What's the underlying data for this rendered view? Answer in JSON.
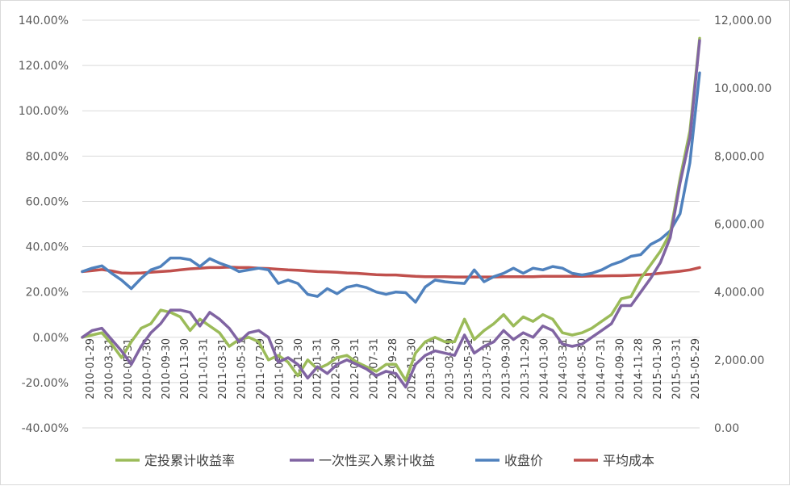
{
  "chart_data": {
    "type": "line",
    "title": "",
    "left_axis": {
      "min": -40,
      "max": 140,
      "step": 20,
      "tick_labels": [
        "-40.00%",
        "-20.00%",
        "0.00%",
        "20.00%",
        "40.00%",
        "60.00%",
        "80.00%",
        "100.00%",
        "120.00%",
        "140.00%"
      ]
    },
    "right_axis": {
      "min": 0,
      "max": 12000,
      "step": 2000,
      "tick_labels": [
        "0.00",
        "2,000.00",
        "4,000.00",
        "6,000.00",
        "8,000.00",
        "10,000.00",
        "12,000.00"
      ]
    },
    "x_labels": [
      "2010-01-29",
      "2010-03-31",
      "2010-05-31",
      "2010-07-30",
      "2010-09-30",
      "2010-11-30",
      "2011-01-31",
      "2011-03-31",
      "2011-05-31",
      "2011-07-29",
      "2011-09-30",
      "2011-11-30",
      "2012-01-31",
      "2012-03-30",
      "2012-05-31",
      "2012-07-31",
      "2012-09-28",
      "2012-11-30",
      "2013-01-31",
      "2013-03-29",
      "2013-05-31",
      "2013-07-31",
      "2013-09-30",
      "2013-11-29",
      "2014-01-30",
      "2014-03-31",
      "2014-05-30",
      "2014-07-31",
      "2014-09-30",
      "2014-11-28",
      "2015-01-30",
      "2015-03-31",
      "2015-05-29"
    ],
    "grid": "horizontal",
    "legend_position": "bottom",
    "series": [
      {
        "name": "定投累计收益率",
        "axis": "left",
        "color": "#9bbb59",
        "values": [
          0,
          1,
          2,
          -3,
          -9,
          -2,
          4,
          6,
          12,
          11,
          9,
          3,
          8,
          5,
          2,
          -4,
          -1,
          0,
          -2,
          -10,
          -8,
          -11,
          -17,
          -10,
          -14,
          -12,
          -9,
          -8,
          -11,
          -13,
          -15,
          -12,
          -12,
          -19,
          -7,
          -2,
          0,
          -2,
          -2,
          8,
          -1,
          3,
          6,
          10,
          5,
          9,
          7,
          10,
          8,
          2,
          1,
          2,
          4,
          7,
          10,
          17,
          18,
          26,
          32,
          38,
          46,
          70,
          91,
          132
        ],
        "val_min": -19,
        "val_max": 132
      },
      {
        "name": "一次性买入累计收益",
        "axis": "left",
        "color": "#8064a2",
        "values": [
          0,
          3,
          4,
          -1,
          -6,
          -12,
          -4,
          2,
          6,
          12,
          12,
          11,
          5,
          11,
          8,
          4,
          -2,
          2,
          3,
          0,
          -11,
          -9,
          -12,
          -18,
          -13,
          -16,
          -12,
          -10,
          -12,
          -14,
          -17,
          -15,
          -16,
          -22,
          -12,
          -8,
          -6,
          -7,
          -8,
          1,
          -7,
          -4,
          -2,
          3,
          -1,
          2,
          0,
          5,
          3,
          -3,
          -4,
          -3,
          0,
          3,
          6,
          14,
          14,
          20,
          26,
          33,
          44,
          68,
          88,
          131
        ],
        "val_min": -22,
        "val_max": 131
      },
      {
        "name": "收盘价",
        "axis": "right",
        "color": "#4f81bd",
        "values": [
          4600,
          4700,
          4770,
          4550,
          4350,
          4100,
          4400,
          4650,
          4750,
          5000,
          5000,
          4950,
          4750,
          4980,
          4850,
          4750,
          4600,
          4650,
          4700,
          4650,
          4250,
          4350,
          4250,
          3930,
          3870,
          4100,
          3950,
          4140,
          4200,
          4130,
          4000,
          3930,
          4000,
          3980,
          3700,
          4150,
          4350,
          4300,
          4270,
          4250,
          4650,
          4300,
          4450,
          4550,
          4700,
          4550,
          4700,
          4650,
          4750,
          4700,
          4550,
          4500,
          4550,
          4650,
          4800,
          4900,
          5050,
          5100,
          5400,
          5550,
          5800,
          6300,
          7800,
          10450
        ],
        "val_min": 3700,
        "val_max": 10450
      },
      {
        "name": "平均成本",
        "axis": "right",
        "color": "#c0504d",
        "values": [
          4600,
          4630,
          4660,
          4620,
          4560,
          4550,
          4560,
          4580,
          4600,
          4620,
          4650,
          4680,
          4700,
          4720,
          4720,
          4730,
          4720,
          4720,
          4700,
          4690,
          4670,
          4650,
          4640,
          4620,
          4600,
          4590,
          4580,
          4560,
          4550,
          4530,
          4510,
          4500,
          4500,
          4480,
          4460,
          4450,
          4450,
          4450,
          4440,
          4440,
          4440,
          4440,
          4440,
          4450,
          4450,
          4450,
          4450,
          4460,
          4460,
          4460,
          4460,
          4460,
          4470,
          4470,
          4480,
          4480,
          4490,
          4500,
          4520,
          4550,
          4580,
          4610,
          4650,
          4720
        ],
        "val_min": 4440,
        "val_max": 4720
      }
    ]
  }
}
